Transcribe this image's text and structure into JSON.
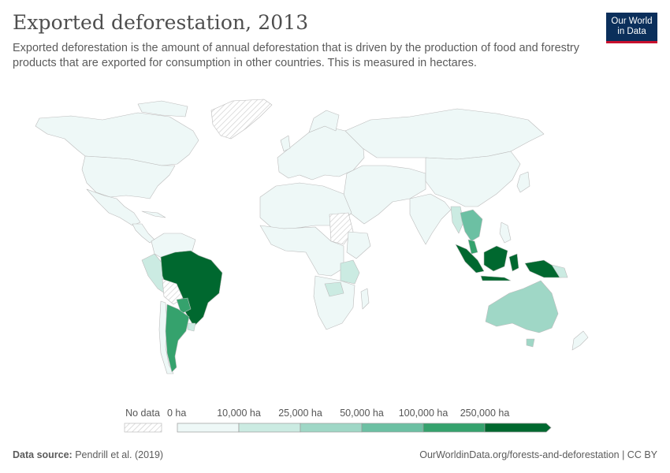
{
  "header": {
    "title": "Exported deforestation, 2013",
    "subtitle": "Exported deforestation is the amount of annual deforestation that is driven by the production of food and forestry products that are exported for consumption in other countries. This is measured in hectares."
  },
  "logo": {
    "line1": "Our World",
    "line2": "in Data",
    "bg_color": "#0b2f5b",
    "accent_color": "#c8102e"
  },
  "legend": {
    "no_data_label": "No data",
    "bins": [
      {
        "label": "0 ha",
        "color": "#eef8f7"
      },
      {
        "label": "10,000 ha",
        "color": "#cbebe2"
      },
      {
        "label": "25,000 ha",
        "color": "#9fd7c6"
      },
      {
        "label": "50,000 ha",
        "color": "#6cc0a3"
      },
      {
        "label": "100,000 ha",
        "color": "#35a26d"
      },
      {
        "label": "250,000 ha",
        "color": "#00682f"
      }
    ]
  },
  "footer": {
    "source_label": "Data source:",
    "source_text": "Pendrill et al. (2019)",
    "right_text": "OurWorldinData.org/forests-and-deforestation | CC BY"
  }
}
